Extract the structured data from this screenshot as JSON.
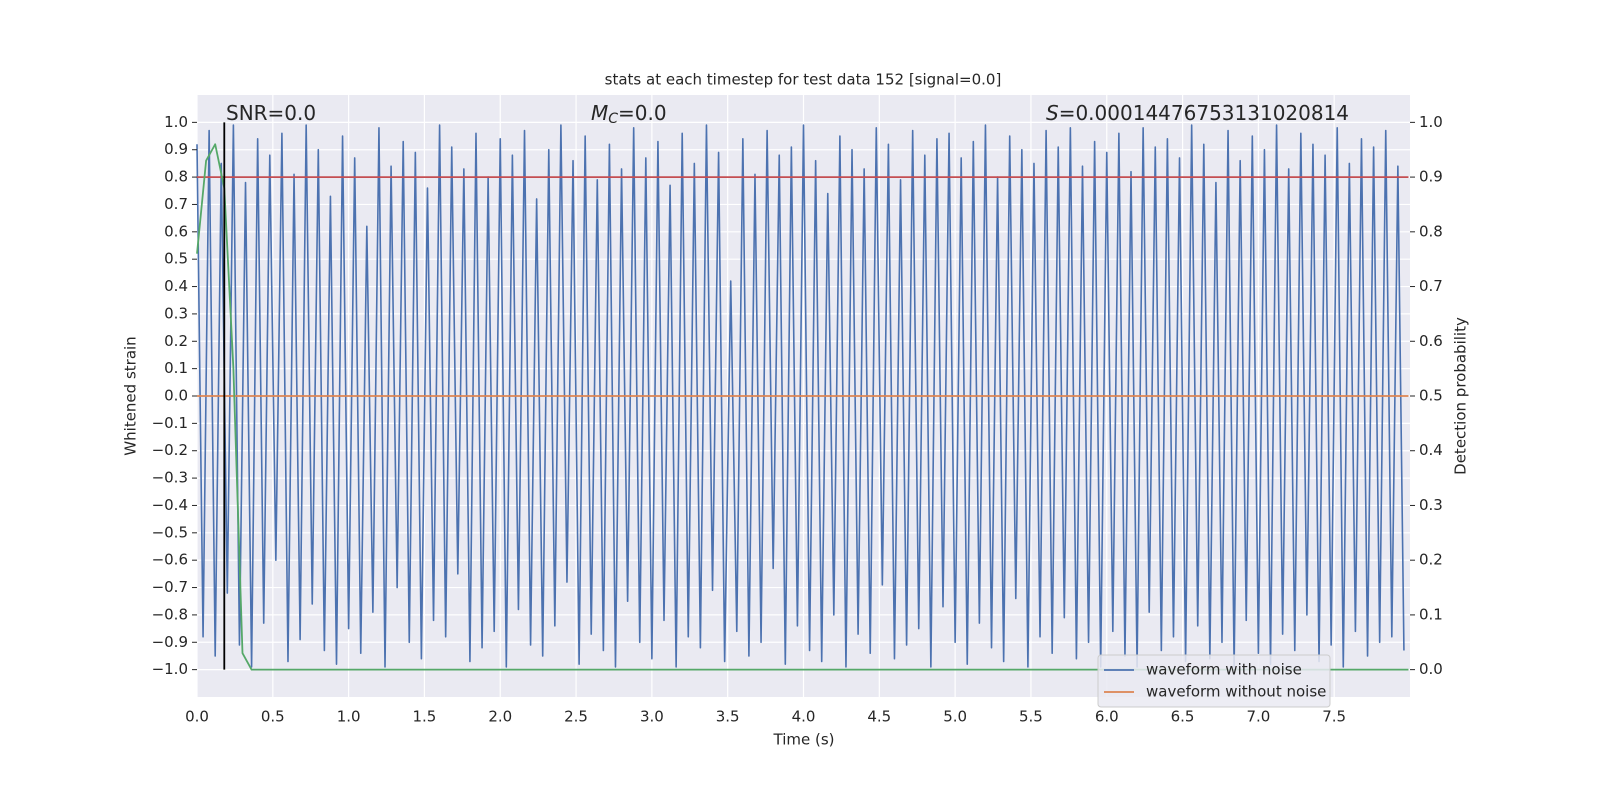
{
  "chart_data": {
    "type": "line",
    "title": "stats at each timestep for test data 152 [signal=0.0]",
    "xlabel": "Time (s)",
    "ylabel": "Whitened strain",
    "y2label": "Detection probability",
    "annotations": [
      {
        "text": "SNR=0.0"
      },
      {
        "italic": "M",
        "sub": "C",
        "text": "=0.0"
      },
      {
        "italic": "S",
        "text": "=0.00014476753131020814"
      }
    ],
    "xlim": [
      0,
      8
    ],
    "ylim": [
      -1.1,
      1.1
    ],
    "y2lim": [
      -0.05,
      1.05
    ],
    "xticks": [
      {
        "value": 0,
        "label": "0.0"
      },
      0.5,
      {
        "value": 1,
        "label": "1.0"
      },
      1.5,
      {
        "value": 2,
        "label": "2.0"
      },
      2.5,
      {
        "value": 3,
        "label": "3.0"
      },
      3.5,
      {
        "value": 4,
        "label": "4.0"
      },
      4.5,
      {
        "value": 5,
        "label": "5.0"
      },
      5.5,
      {
        "value": 6,
        "label": "6.0"
      },
      6.5,
      {
        "value": 7,
        "label": "7.0"
      },
      7.5
    ],
    "yticks": [
      {
        "value": -1,
        "label": "−1.0"
      },
      {
        "value": -0.9,
        "label": "−0.9"
      },
      {
        "value": -0.8,
        "label": "−0.8"
      },
      {
        "value": -0.7,
        "label": "−0.7"
      },
      {
        "value": -0.6,
        "label": "−0.6"
      },
      {
        "value": -0.5,
        "label": "−0.5"
      },
      {
        "value": -0.4,
        "label": "−0.4"
      },
      {
        "value": -0.3,
        "label": "−0.3"
      },
      {
        "value": -0.2,
        "label": "−0.2"
      },
      {
        "value": -0.1,
        "label": "−0.1"
      },
      {
        "value": 0,
        "label": "0.0"
      },
      0.1,
      0.2,
      0.3,
      0.4,
      0.5,
      0.6,
      0.7,
      0.8,
      0.9,
      {
        "value": 1,
        "label": "1.0"
      }
    ],
    "y2ticks": [
      {
        "value": 0,
        "label": "0.0"
      },
      0.1,
      0.2,
      0.3,
      0.4,
      0.5,
      0.6,
      0.7,
      0.8,
      0.9,
      {
        "value": 1,
        "label": "1.0"
      }
    ],
    "grid": true,
    "legend": "lower right",
    "series": [
      {
        "name": "waveform with noise",
        "color": "#4c72b0",
        "x": [
          0,
          0.04,
          0.08,
          0.12,
          0.16,
          0.2,
          0.24,
          0.28,
          0.32,
          0.36,
          0.4,
          0.44,
          0.48,
          0.52,
          0.56,
          0.6,
          0.64,
          0.68,
          0.72,
          0.76,
          0.8,
          0.84,
          0.88,
          0.92,
          0.96,
          1,
          1.04,
          1.08,
          1.12,
          1.16,
          1.2,
          1.24,
          1.28,
          1.32,
          1.36,
          1.4,
          1.44,
          1.48,
          1.52,
          1.56,
          1.6,
          1.64,
          1.68,
          1.72,
          1.76,
          1.8,
          1.84,
          1.88,
          1.92,
          1.96,
          2,
          2.04,
          2.08,
          2.12,
          2.16,
          2.2,
          2.24,
          2.28,
          2.32,
          2.36,
          2.4,
          2.44,
          2.48,
          2.52,
          2.56,
          2.6,
          2.64,
          2.68,
          2.72,
          2.76,
          2.8,
          2.84,
          2.88,
          2.92,
          2.96,
          3,
          3.04,
          3.08,
          3.12,
          3.16,
          3.2,
          3.24,
          3.28,
          3.32,
          3.36,
          3.4,
          3.44,
          3.48,
          3.52,
          3.56,
          3.6,
          3.64,
          3.68,
          3.72,
          3.76,
          3.8,
          3.84,
          3.88,
          3.92,
          3.96,
          4,
          4.04,
          4.08,
          4.12,
          4.16,
          4.2,
          4.24,
          4.28,
          4.32,
          4.36,
          4.4,
          4.44,
          4.48,
          4.52,
          4.56,
          4.6,
          4.64,
          4.68,
          4.72,
          4.76,
          4.8,
          4.84,
          4.88,
          4.92,
          4.96,
          5,
          5.04,
          5.08,
          5.12,
          5.16,
          5.2,
          5.24,
          5.28,
          5.32,
          5.36,
          5.4,
          5.44,
          5.48,
          5.52,
          5.56,
          5.6,
          5.64,
          5.68,
          5.72,
          5.76,
          5.8,
          5.84,
          5.88,
          5.92,
          5.96,
          6,
          6.04,
          6.08,
          6.12,
          6.16,
          6.2,
          6.24,
          6.28,
          6.32,
          6.36,
          6.4,
          6.44,
          6.48,
          6.52,
          6.56,
          6.6,
          6.64,
          6.68,
          6.72,
          6.76,
          6.8,
          6.84,
          6.88,
          6.92,
          6.96,
          7,
          7.04,
          7.08,
          7.12,
          7.16,
          7.2,
          7.24,
          7.28,
          7.32,
          7.36,
          7.4,
          7.44,
          7.48,
          7.52,
          7.56,
          7.6,
          7.64,
          7.68,
          7.72,
          7.76,
          7.8,
          7.84,
          7.88,
          7.92,
          7.96
        ],
        "values": [
          0.92,
          -0.88,
          0.97,
          -0.95,
          0.85,
          -0.72,
          0.99,
          -0.91,
          0.78,
          -0.99,
          0.94,
          -0.83,
          0.88,
          -0.6,
          0.96,
          -0.97,
          0.81,
          -0.89,
          0.99,
          -0.76,
          0.9,
          -0.93,
          0.73,
          -0.98,
          0.95,
          -0.85,
          0.87,
          -0.94,
          0.62,
          -0.79,
          0.98,
          -0.99,
          0.84,
          -0.7,
          0.93,
          -0.9,
          0.89,
          -0.96,
          0.76,
          -0.82,
          0.99,
          -0.88,
          0.91,
          -0.65,
          0.83,
          -0.97,
          0.96,
          -0.92,
          0.8,
          -0.86,
          0.94,
          -0.99,
          0.88,
          -0.78,
          0.97,
          -0.91,
          0.72,
          -0.95,
          0.9,
          -0.84,
          0.99,
          -0.68,
          0.86,
          -0.98,
          0.95,
          -0.87,
          0.79,
          -0.93,
          0.92,
          -0.99,
          0.83,
          -0.75,
          0.98,
          -0.9,
          0.87,
          -0.96,
          0.93,
          -0.82,
          0.77,
          -0.99,
          0.96,
          -0.88,
          0.85,
          -0.92,
          0.99,
          -0.71,
          0.89,
          -0.97,
          0.42,
          -0.86,
          0.94,
          -0.95,
          0.81,
          -0.9,
          0.97,
          -0.63,
          0.88,
          -0.98,
          0.91,
          -0.84,
          0.99,
          -0.93,
          0.86,
          -0.97,
          0.74,
          -0.8,
          0.95,
          -0.99,
          0.9,
          -0.87,
          0.83,
          -0.94,
          0.98,
          -0.69,
          0.92,
          -0.96,
          0.79,
          -0.91,
          0.97,
          -0.85,
          0.88,
          -0.99,
          0.94,
          -0.77,
          0.96,
          -0.9,
          0.87,
          -0.98,
          0.93,
          -0.83,
          0.99,
          -0.92,
          0.8,
          -0.97,
          0.95,
          -0.74,
          0.9,
          -0.99,
          0.85,
          -0.88,
          0.97,
          -0.94,
          0.91,
          -0.81,
          0.98,
          -0.96,
          0.84,
          -0.9,
          0.93,
          -0.99,
          0.89,
          -0.86,
          0.96,
          -0.95,
          0.82,
          -0.99,
          0.98,
          -0.79,
          0.91,
          -0.93,
          0.94,
          -0.88,
          0.87,
          -0.97,
          0.99,
          -0.84,
          0.92,
          -0.96,
          0.78,
          -0.9,
          0.97,
          -0.99,
          0.86,
          -0.82,
          0.95,
          -0.94,
          0.9,
          -0.98,
          0.99,
          -0.87,
          0.83,
          -0.93,
          0.96,
          -0.8,
          0.92,
          -0.97,
          0.88,
          -0.91,
          0.98,
          -0.99,
          0.85,
          -0.86,
          0.94,
          -0.95,
          0.91,
          -0.9,
          0.97,
          -0.88,
          0.84,
          -0.93
        ]
      },
      {
        "name": "waveform without noise",
        "color": "#dd8452",
        "x": [
          0,
          7.99
        ],
        "values": [
          0,
          0
        ]
      },
      {
        "color": "#c44e52",
        "axis": "y2",
        "x": [
          0,
          7.99
        ],
        "values": [
          0.9,
          0.9
        ]
      },
      {
        "color": "#55a868",
        "axis": "y2",
        "x": [
          0,
          0.06,
          0.12,
          0.18,
          0.24,
          0.3,
          0.36,
          7.99
        ],
        "values": [
          0.76,
          0.93,
          0.96,
          0.88,
          0.55,
          0.03,
          0,
          0
        ]
      }
    ],
    "vlines": [
      {
        "x": 0.18,
        "ymin": -1,
        "ymax": 1,
        "color": "#000000"
      }
    ]
  }
}
